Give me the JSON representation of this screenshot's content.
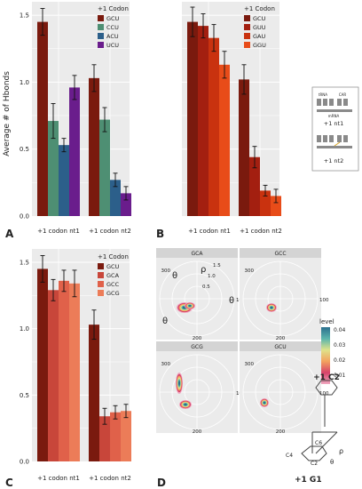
{
  "figure": {
    "y_axis_label": "Average # of Hbonds",
    "panel_labels": [
      "A",
      "B",
      "C",
      "D"
    ],
    "x_group_labels": [
      "+1 codon nt1",
      "+1 codon nt2"
    ],
    "legend_title": "+1 Codon",
    "diagram": {
      "trna": "tRNA",
      "car": "CAR",
      "mrna": "mRNA",
      "nt1": "+1 nt1",
      "nt2": "+1 nt2",
      "c2": "+1 C2",
      "g1": "+1 G1",
      "c4": "C4",
      "c6": "C6",
      "c2_atom": "C2",
      "rho": "ρ",
      "theta": "θ"
    }
  },
  "chart_data": [
    {
      "type": "bar",
      "panel": "A",
      "legend_title": "+1 Codon",
      "categories": [
        "+1 codon nt1",
        "+1 codon nt2"
      ],
      "ylim": [
        0,
        1.6
      ],
      "yticks": [
        "0.0",
        "0.5",
        "1.0",
        "1.5"
      ],
      "series": [
        {
          "name": "GCU",
          "color": "#7a1a0e",
          "values": [
            1.45,
            1.03
          ],
          "errors": [
            0.1,
            0.1
          ]
        },
        {
          "name": "CCU",
          "color": "#4e8f73",
          "values": [
            0.71,
            0.72
          ],
          "errors": [
            0.13,
            0.09
          ]
        },
        {
          "name": "ACU",
          "color": "#2c5f8a",
          "values": [
            0.53,
            0.27
          ],
          "errors": [
            0.05,
            0.05
          ]
        },
        {
          "name": "UCU",
          "color": "#6a1d8c",
          "values": [
            0.96,
            0.17
          ],
          "errors": [
            0.09,
            0.05
          ]
        }
      ]
    },
    {
      "type": "bar",
      "panel": "B",
      "legend_title": "+1 Codon",
      "categories": [
        "+1 codon nt1",
        "+1 codon nt2"
      ],
      "ylim": [
        0,
        1.6
      ],
      "series": [
        {
          "name": "GCU",
          "color": "#7a1a0e",
          "values": [
            1.45,
            1.02
          ],
          "errors": [
            0.11,
            0.11
          ]
        },
        {
          "name": "GUU",
          "color": "#a31f10",
          "values": [
            1.42,
            0.44
          ],
          "errors": [
            0.09,
            0.08
          ]
        },
        {
          "name": "GAU",
          "color": "#c9320f",
          "values": [
            1.33,
            0.19
          ],
          "errors": [
            0.1,
            0.04
          ]
        },
        {
          "name": "GGU",
          "color": "#e84c19",
          "values": [
            1.13,
            0.15
          ],
          "errors": [
            0.1,
            0.05
          ]
        }
      ]
    },
    {
      "type": "bar",
      "panel": "C",
      "legend_title": "+1 Codon",
      "categories": [
        "+1 codon nt1",
        "+1 codon nt2"
      ],
      "ylim": [
        0,
        1.6
      ],
      "yticks": [
        "0.0",
        "0.5",
        "1.0",
        "1.5"
      ],
      "series": [
        {
          "name": "GCU",
          "color": "#7a1a0e",
          "values": [
            1.45,
            1.03
          ],
          "errors": [
            0.1,
            0.11
          ]
        },
        {
          "name": "GCA",
          "color": "#c8463a",
          "values": [
            1.29,
            0.34
          ],
          "errors": [
            0.08,
            0.06
          ]
        },
        {
          "name": "GCC",
          "color": "#e0614a",
          "values": [
            1.36,
            0.37
          ],
          "errors": [
            0.08,
            0.05
          ]
        },
        {
          "name": "GCG",
          "color": "#ec7c58",
          "values": [
            1.34,
            0.38
          ],
          "errors": [
            0.1,
            0.05
          ]
        }
      ]
    },
    {
      "type": "heatmap",
      "panel": "D",
      "facets": [
        "GCA",
        "GCC",
        "GCG",
        "GCU"
      ],
      "r_ticks": [
        "0.5",
        "1.0",
        "1.5"
      ],
      "theta_ticks": [
        "100",
        "200",
        "300"
      ],
      "r_label": "ρ",
      "theta_label": "θ",
      "legend_title": "level",
      "legend_ticks": [
        "0.04",
        "0.03",
        "0.02",
        "0.01"
      ],
      "colors": [
        "#2b6f8e",
        "#5ab4ac",
        "#dfe38a",
        "#f3a25f",
        "#d6426a",
        "#f0a8c0"
      ]
    }
  ]
}
